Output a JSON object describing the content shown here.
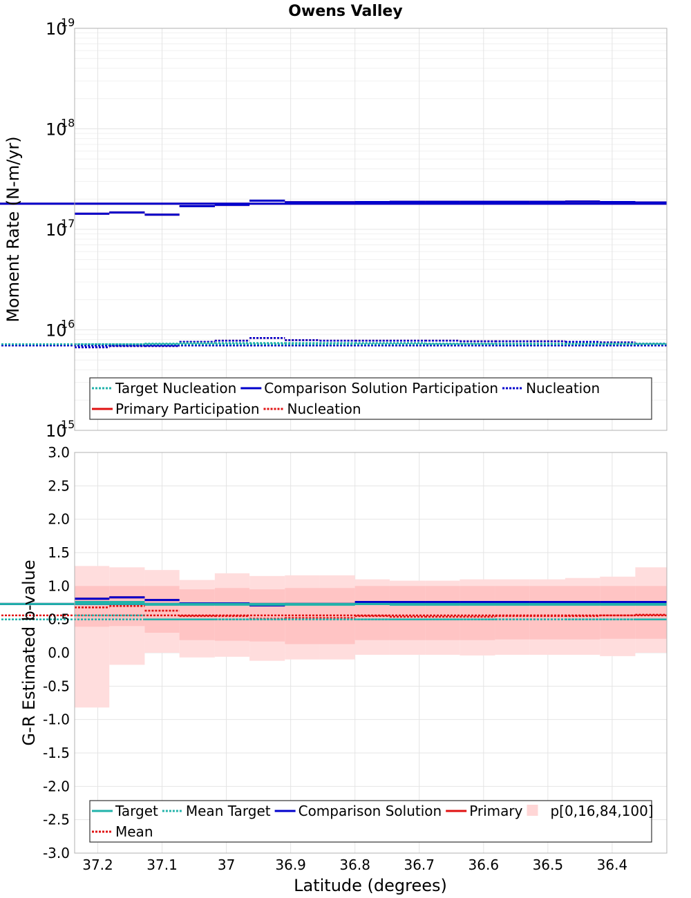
{
  "title": "Owens Valley",
  "chart_data": [
    {
      "type": "line",
      "subtype": "step",
      "ylabel": "Moment Rate (N-m/yr)",
      "yscale": "log",
      "ylim": [
        1000000000000000.0,
        1e+19
      ],
      "yticks": [
        {
          "base": "10",
          "exp": "15",
          "value": 1000000000000000.0
        },
        {
          "base": "10",
          "exp": "16",
          "value": 1e+16
        },
        {
          "base": "10",
          "exp": "17",
          "value": 1e+17
        },
        {
          "base": "10",
          "exp": "18",
          "value": 1e+18
        },
        {
          "base": "10",
          "exp": "19",
          "value": 1e+19
        }
      ],
      "grid": true,
      "legend_position": "bottom",
      "legend": [
        {
          "label": "Target Nucleation",
          "color": "#20b2aa",
          "dash": "dotted",
          "row": 0
        },
        {
          "label": "Comparison Solution Participation",
          "color": "#0000cc",
          "dash": "solid",
          "row": 0
        },
        {
          "label": "Nucleation",
          "color": "#0000cc",
          "dash": "dotted",
          "row": 0
        },
        {
          "label": "Primary Participation",
          "color": "#e01010",
          "dash": "solid",
          "row": 1
        },
        {
          "label": "Nucleation",
          "color": "#e01010",
          "dash": "dotted",
          "row": 1
        }
      ],
      "series": [
        {
          "name": "Primary Participation",
          "color": "#e01010",
          "dash": "solid",
          "values": [
            1.43e+17,
            1.47e+17,
            1.4e+17,
            1.7e+17,
            1.75e+17,
            1.93e+17,
            1.86e+17,
            1.86e+17,
            1.87e+17,
            1.88e+17,
            1.88e+17,
            1.88e+17,
            1.88e+17,
            1.88e+17,
            1.89e+17,
            1.87e+17,
            1.85e+17,
            1.8e+17
          ]
        },
        {
          "name": "Comparison Solution Participation",
          "color": "#0000cc",
          "dash": "solid",
          "values": [
            1.43e+17,
            1.47e+17,
            1.4e+17,
            1.7e+17,
            1.75e+17,
            1.93e+17,
            1.86e+17,
            1.86e+17,
            1.87e+17,
            1.88e+17,
            1.88e+17,
            1.88e+17,
            1.88e+17,
            1.88e+17,
            1.89e+17,
            1.87e+17,
            1.85e+17,
            1.8e+17
          ]
        },
        {
          "name": "Nucleation",
          "color": "#e01010",
          "dash": "dotted",
          "values": [
            6700000000000000.0,
            6900000000000000.0,
            6900000000000000.0,
            7600000000000000.0,
            7800000000000000.0,
            8300000000000000.0,
            7900000000000000.0,
            7800000000000000.0,
            7800000000000000.0,
            7800000000000000.0,
            7800000000000000.0,
            7700000000000000.0,
            7700000000000000.0,
            7700000000000000.0,
            7600000000000000.0,
            7500000000000000.0,
            7300000000000000.0,
            7000000000000000.0
          ]
        },
        {
          "name": "Nucleation",
          "color": "#0000cc",
          "dash": "dotted",
          "values": [
            6700000000000000.0,
            6900000000000000.0,
            6900000000000000.0,
            7600000000000000.0,
            7800000000000000.0,
            8300000000000000.0,
            7900000000000000.0,
            7800000000000000.0,
            7800000000000000.0,
            7800000000000000.0,
            7800000000000000.0,
            7700000000000000.0,
            7700000000000000.0,
            7700000000000000.0,
            7600000000000000.0,
            7500000000000000.0,
            7300000000000000.0,
            7000000000000000.0
          ]
        },
        {
          "name": "Target Nucleation",
          "color": "#20b2aa",
          "dash": "dotted",
          "values": [
            7200000000000000.0,
            7200000000000000.0,
            7300000000000000.0,
            7400000000000000.0,
            7400000000000000.0,
            7400000000000000.0,
            7400000000000000.0,
            7400000000000000.0,
            7400000000000000.0,
            7400000000000000.0,
            7300000000000000.0,
            7300000000000000.0,
            7300000000000000.0,
            7300000000000000.0,
            7300000000000000.0,
            7300000000000000.0,
            7300000000000000.0,
            7200000000000000.0
          ]
        }
      ]
    },
    {
      "type": "line",
      "subtype": "step",
      "xlabel": "Latitude (degrees)",
      "ylabel": "G-R Estimated b-value",
      "ylim": [
        -3.0,
        3.0
      ],
      "yticks": [
        3.0,
        2.5,
        2.0,
        1.5,
        1.0,
        0.5,
        0.0,
        -0.5,
        -1.0,
        -1.5,
        -2.0,
        -2.5,
        -3.0
      ],
      "ytick_labels": [
        "3.0",
        "2.5",
        "2.0",
        "1.5",
        "1.0",
        "0.5",
        "0.0",
        "-0.5",
        "-1.0",
        "-1.5",
        "-2.0",
        "-2.5",
        "-3.0"
      ],
      "grid": true,
      "legend_position": "bottom",
      "legend": [
        {
          "label": "Target",
          "color": "#20b2aa",
          "dash": "solid",
          "row": 0
        },
        {
          "label": "Mean Target",
          "color": "#20b2aa",
          "dash": "dotted",
          "row": 0
        },
        {
          "label": "Comparison Solution",
          "color": "#0000cc",
          "dash": "solid",
          "row": 0
        },
        {
          "label": "Primary",
          "color": "#e01010",
          "dash": "solid",
          "row": 0
        },
        {
          "label": "p[0,16,84,100]",
          "color": "#ffd6d6",
          "dash": "fill",
          "row": 0
        },
        {
          "label": "Mean",
          "color": "#e01010",
          "dash": "dotted",
          "row": 1
        }
      ],
      "bands": {
        "p0": [
          -0.82,
          -0.18,
          0.0,
          -0.07,
          -0.06,
          -0.12,
          -0.1,
          -0.1,
          -0.03,
          -0.03,
          -0.03,
          -0.04,
          -0.03,
          -0.03,
          -0.03,
          -0.05,
          0.0,
          0.0
        ],
        "p16": [
          0.39,
          0.4,
          0.3,
          0.19,
          0.18,
          0.17,
          0.13,
          0.13,
          0.19,
          0.19,
          0.19,
          0.19,
          0.2,
          0.2,
          0.2,
          0.21,
          0.21,
          0.18
        ],
        "p84": [
          1.0,
          1.0,
          1.0,
          0.95,
          0.97,
          0.95,
          0.97,
          0.97,
          1.0,
          1.0,
          1.0,
          1.0,
          1.0,
          1.0,
          1.0,
          1.0,
          1.0,
          1.0
        ],
        "p100": [
          1.3,
          1.28,
          1.24,
          1.09,
          1.19,
          1.15,
          1.16,
          1.16,
          1.1,
          1.08,
          1.08,
          1.1,
          1.1,
          1.1,
          1.12,
          1.14,
          1.28,
          1.3
        ]
      },
      "series": [
        {
          "name": "Primary",
          "color": "#e01010",
          "dash": "solid",
          "values": [
            0.81,
            0.83,
            0.79,
            0.74,
            0.74,
            0.71,
            0.73,
            0.73,
            0.76,
            0.76,
            0.76,
            0.76,
            0.76,
            0.76,
            0.76,
            0.76,
            0.76,
            0.73
          ]
        },
        {
          "name": "Comparison Solution",
          "color": "#0000cc",
          "dash": "solid",
          "values": [
            0.81,
            0.83,
            0.79,
            0.74,
            0.74,
            0.71,
            0.73,
            0.73,
            0.76,
            0.76,
            0.76,
            0.76,
            0.76,
            0.76,
            0.76,
            0.76,
            0.76,
            0.73
          ]
        },
        {
          "name": "Target",
          "color": "#20b2aa",
          "dash": "solid",
          "values": [
            0.76,
            0.76,
            0.72,
            0.72,
            0.72,
            0.72,
            0.72,
            0.72,
            0.73,
            0.72,
            0.72,
            0.72,
            0.72,
            0.72,
            0.72,
            0.72,
            0.72,
            0.73
          ]
        },
        {
          "name": "Mean",
          "color": "#e01010",
          "dash": "dotted",
          "values": [
            0.68,
            0.7,
            0.63,
            0.55,
            0.55,
            0.51,
            0.52,
            0.52,
            0.55,
            0.54,
            0.54,
            0.54,
            0.55,
            0.55,
            0.55,
            0.56,
            0.57,
            0.56
          ]
        },
        {
          "name": "Mean Target",
          "color": "#20b2aa",
          "dash": "dotted",
          "values": [
            0.56,
            0.56,
            0.5,
            0.5,
            0.5,
            0.5,
            0.5,
            0.5,
            0.5,
            0.5,
            0.5,
            0.5,
            0.5,
            0.5,
            0.5,
            0.5,
            0.5,
            0.5
          ]
        }
      ]
    }
  ],
  "x_axis": {
    "label": "Latitude (degrees)",
    "range": [
      37.236,
      36.315
    ],
    "ticks": [
      37.2,
      37.1,
      37.0,
      36.9,
      36.8,
      36.7,
      36.6,
      36.5,
      36.4
    ],
    "tick_labels": [
      "37.2",
      "37.1",
      "37",
      "36.9",
      "36.8",
      "36.7",
      "36.6",
      "36.5",
      "36.4"
    ],
    "section_edges": [
      37.236,
      37.182,
      37.127,
      37.073,
      37.018,
      36.964,
      36.909,
      36.855,
      36.8,
      36.746,
      36.691,
      36.637,
      36.582,
      36.528,
      36.473,
      36.419,
      36.364,
      36.315
    ]
  }
}
